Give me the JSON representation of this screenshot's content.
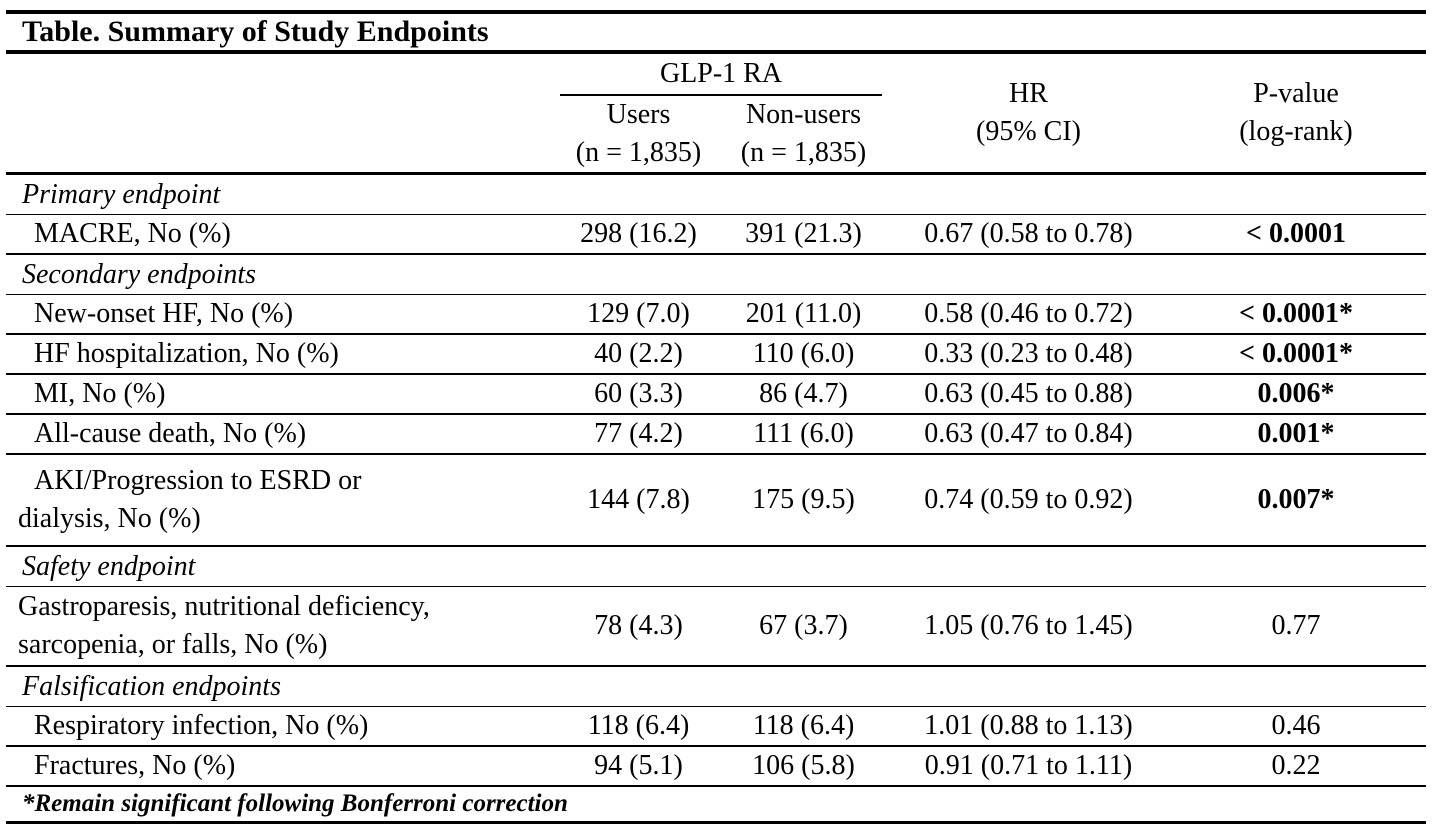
{
  "title": "Table. Summary of Study Endpoints",
  "header": {
    "group": "GLP-1 RA",
    "users": {
      "label": "Users",
      "n": "(n = 1,835)"
    },
    "nonusers": {
      "label": "Non-users",
      "n": "(n = 1,835)"
    },
    "hr": {
      "line1": "HR",
      "line2": "(95% CI)"
    },
    "pvalue": {
      "line1": "P-value",
      "line2": "(log-rank)"
    }
  },
  "rows": [
    {
      "kind": "section",
      "label": "Primary endpoint"
    },
    {
      "kind": "data",
      "label": "MACRE, No (%)",
      "users": "298 (16.2)",
      "nonusers": "391 (21.3)",
      "hr": "0.67 (0.58 to 0.78)",
      "p": "< 0.0001",
      "p_bold": true
    },
    {
      "kind": "section",
      "label": "Secondary endpoints"
    },
    {
      "kind": "data",
      "label": "New-onset HF, No (%)",
      "users": "129 (7.0)",
      "nonusers": "201 (11.0)",
      "hr": "0.58 (0.46 to 0.72)",
      "p": "< 0.0001*",
      "p_bold": true
    },
    {
      "kind": "data",
      "label": "HF hospitalization, No (%)",
      "users": "40 (2.2)",
      "nonusers": "110 (6.0)",
      "hr": "0.33 (0.23 to 0.48)",
      "p": "< 0.0001*",
      "p_bold": true
    },
    {
      "kind": "data",
      "label": "MI, No (%)",
      "users": "60 (3.3)",
      "nonusers": "86 (4.7)",
      "hr": "0.63 (0.45 to 0.88)",
      "p": "0.006*",
      "p_bold": true
    },
    {
      "kind": "data",
      "label": "All-cause death, No (%)",
      "users": "77 (4.2)",
      "nonusers": "111 (6.0)",
      "hr": "0.63 (0.47 to 0.84)",
      "p": "0.001*",
      "p_bold": true
    },
    {
      "kind": "data",
      "label": "AKI/Progression to ESRD or dialysis, No (%)",
      "label_lines": [
        "AKI/Progression to ESRD or",
        "dialysis, No (%)"
      ],
      "users": "144 (7.8)",
      "nonusers": "175 (9.5)",
      "hr": "0.74 (0.59 to 0.92)",
      "p": "0.007*",
      "p_bold": true
    },
    {
      "kind": "section",
      "label": "Safety endpoint"
    },
    {
      "kind": "data",
      "label": "Gastroparesis, nutritional deficiency, sarcopenia, or falls, No (%)",
      "label_lines": [
        "Gastroparesis, nutritional deficiency,",
        "sarcopenia, or falls, No (%)"
      ],
      "users": "78 (4.3)",
      "nonusers": "67 (3.7)",
      "hr": "1.05 (0.76 to 1.45)",
      "p": "0.77",
      "p_bold": false
    },
    {
      "kind": "section",
      "label": "Falsification endpoints"
    },
    {
      "kind": "data",
      "label": "Respiratory infection, No (%)",
      "users": "118 (6.4)",
      "nonusers": "118 (6.4)",
      "hr": "1.01 (0.88 to 1.13)",
      "p": "0.46",
      "p_bold": false
    },
    {
      "kind": "data",
      "label": "Fractures, No (%)",
      "users": "94 (5.1)",
      "nonusers": "106 (5.8)",
      "hr": "0.91 (0.71 to 1.11)",
      "p": "0.22",
      "p_bold": false
    }
  ],
  "footnote": "*Remain significant following Bonferroni correction",
  "colors": {
    "text": "#000000",
    "background": "#ffffff",
    "rule": "#000000"
  }
}
